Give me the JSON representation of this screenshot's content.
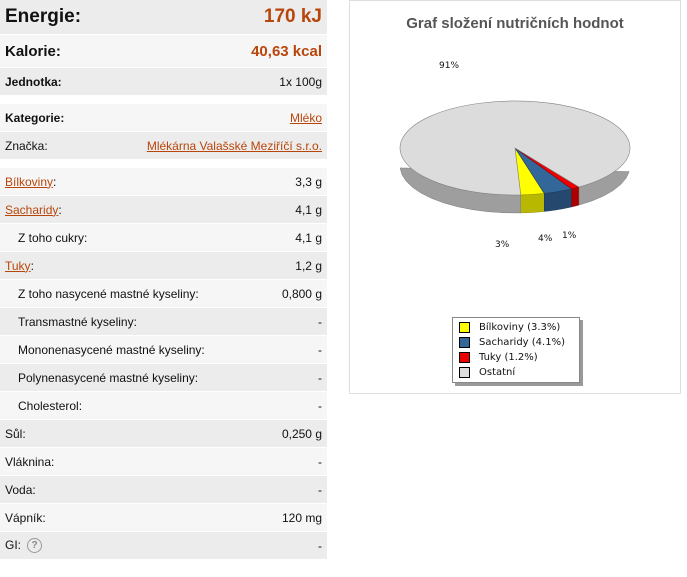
{
  "nutrition": {
    "energy": {
      "label": "Energie:",
      "value": "170 kJ"
    },
    "calories": {
      "label": "Kalorie:",
      "value": "40,63 kcal"
    },
    "unit": {
      "label": "Jednotka:",
      "value": "1x 100g"
    },
    "category": {
      "label": "Kategorie:",
      "value": "Mléko"
    },
    "brand": {
      "label": "Značka:",
      "value": "Mlékárna Valašské Meziříčí s.r.o."
    },
    "rows": [
      {
        "label": "Bílkoviny",
        "colon": ":",
        "value": "3,3 g"
      },
      {
        "label": "Sacharidy",
        "colon": ":",
        "value": "4,1 g"
      },
      {
        "label": "Z toho cukry:",
        "value": "4,1 g"
      },
      {
        "label": "Tuky",
        "colon": ":",
        "value": "1,2 g"
      },
      {
        "label": "Z toho nasycené mastné kyseliny:",
        "value": "0,800 g"
      },
      {
        "label": "Transmastné kyseliny:",
        "value": "-"
      },
      {
        "label": "Mononenasycené mastné kyseliny:",
        "value": "-"
      },
      {
        "label": "Polynenasycené mastné kyseliny:",
        "value": "-"
      },
      {
        "label": "Cholesterol:",
        "value": "-"
      },
      {
        "label": "Sůl:",
        "value": "0,250 g"
      },
      {
        "label": "Vláknina:",
        "value": "-"
      },
      {
        "label": "Voda:",
        "value": "-"
      },
      {
        "label": "Vápník:",
        "value": "120 mg"
      },
      {
        "label": "GI:",
        "value": "-",
        "help_icon": "question-circle-icon"
      }
    ]
  },
  "chart_data": {
    "type": "pie",
    "title": "Graf složení nutričních hodnot",
    "series": [
      {
        "name": "Bílkoviny (3.3%)",
        "value": 3.3,
        "label": "3%",
        "color": "#ffff00"
      },
      {
        "name": "Sacharidy (4.1%)",
        "value": 4.1,
        "label": "4%",
        "color": "#336699"
      },
      {
        "name": "Tuky (1.2%)",
        "value": 1.2,
        "label": "1%",
        "color": "#ee0000"
      },
      {
        "name": "Ostatní",
        "value": 91.4,
        "label": "91%",
        "color": "#dcdcdc"
      }
    ],
    "legend_position": "bottom"
  }
}
